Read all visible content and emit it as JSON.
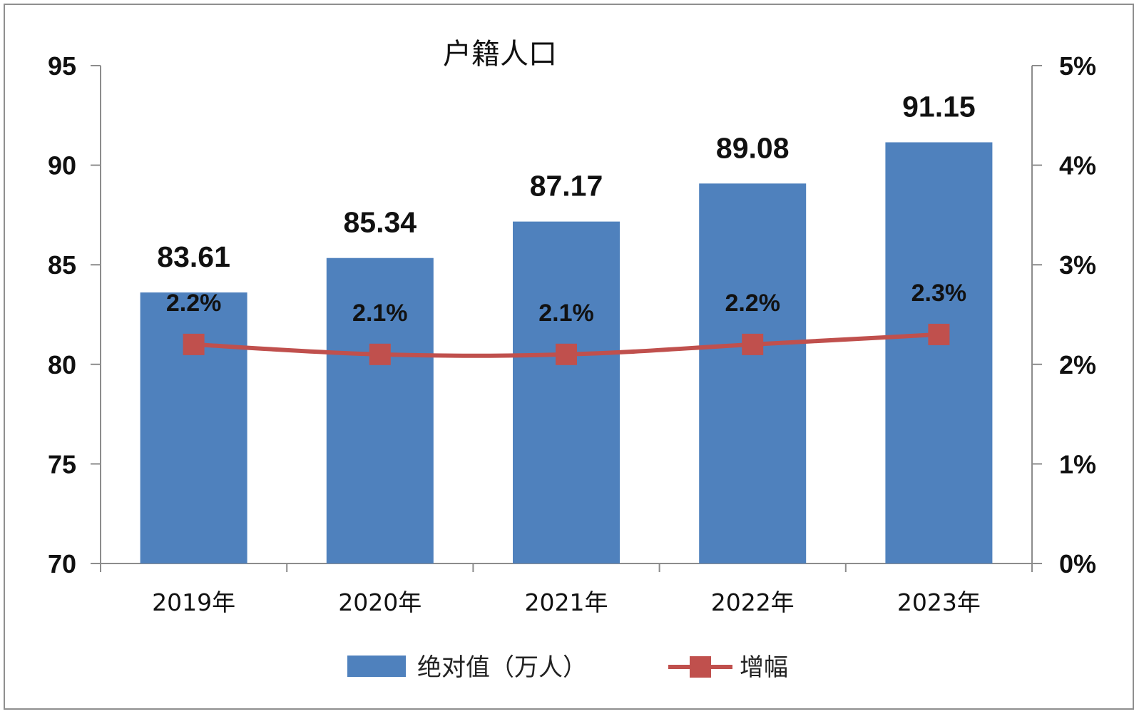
{
  "chart_data": {
    "type": "bar+line",
    "title": "户籍人口",
    "categories": [
      "2019年",
      "2020年",
      "2021年",
      "2022年",
      "2023年"
    ],
    "series": [
      {
        "name": "绝对值（万人）",
        "type": "bar",
        "axis": "left",
        "values": [
          83.61,
          85.34,
          87.17,
          89.08,
          91.15
        ],
        "labels": [
          "83.61",
          "85.34",
          "87.17",
          "89.08",
          "91.15"
        ],
        "color": "#4f81bd"
      },
      {
        "name": "增幅",
        "type": "line",
        "axis": "right",
        "values": [
          2.2,
          2.1,
          2.1,
          2.2,
          2.3
        ],
        "labels": [
          "2.2%",
          "2.1%",
          "2.1%",
          "2.2%",
          "2.3%"
        ],
        "color": "#c0504d"
      }
    ],
    "y_left": {
      "ylim": [
        70,
        95
      ],
      "ticks": [
        "70",
        "75",
        "80",
        "85",
        "90",
        "95"
      ]
    },
    "y_right": {
      "ylim": [
        0,
        5
      ],
      "unit": "%",
      "ticks": [
        "0%",
        "1%",
        "2%",
        "3%",
        "4%",
        "5%"
      ]
    },
    "grid": false,
    "legend": "bottom-center"
  }
}
